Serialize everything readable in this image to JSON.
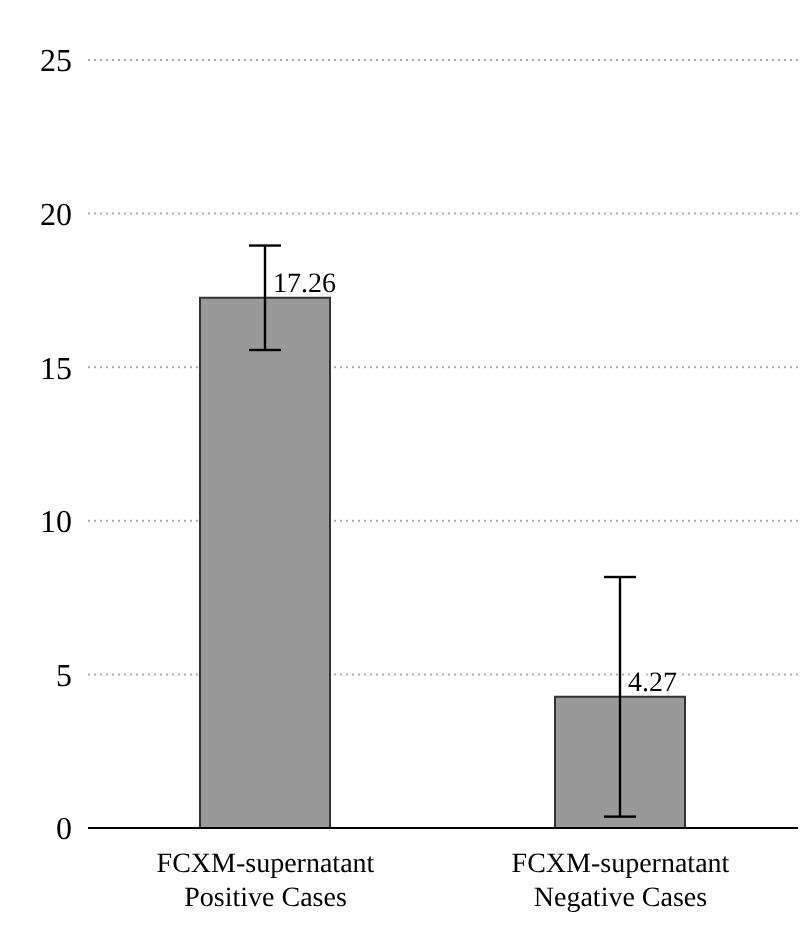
{
  "chart_data": {
    "type": "bar",
    "categories": [
      "FCXM-supernatant Positive Cases",
      "FCXM-supernatant Negative Cases"
    ],
    "values": [
      17.26,
      4.27
    ],
    "errors": [
      1.7,
      3.9
    ],
    "color": "#999999",
    "ylim": [
      0,
      25
    ],
    "yticks": [
      0,
      5,
      10,
      15,
      20,
      25
    ],
    "grid": "y",
    "data_labels": true
  }
}
